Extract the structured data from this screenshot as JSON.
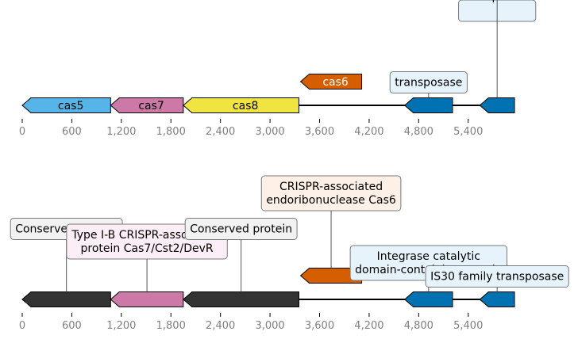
{
  "axis": {
    "ticks": [
      0,
      600,
      1200,
      1800,
      2400,
      3000,
      3600,
      4200,
      4800,
      5400
    ],
    "tick_labels": [
      "0",
      "600",
      "1,200",
      "1,800",
      "2,400",
      "3,000",
      "3,600",
      "4,200",
      "4,800",
      "5,400"
    ]
  },
  "tracks": [
    {
      "genes": [
        {
          "start": 0,
          "end": 1070,
          "strand": -1,
          "color": "#56b4e9",
          "label": "cas5",
          "label_color": "#000000"
        },
        {
          "start": 1070,
          "end": 1950,
          "strand": -1,
          "color": "#cc79a7",
          "label": "cas7",
          "label_color": "#000000"
        },
        {
          "start": 1950,
          "end": 3350,
          "strand": -1,
          "color": "#f0e442",
          "label": "cas8",
          "label_color": "#000000"
        },
        {
          "start": 3370,
          "end": 4110,
          "strand": -1,
          "color": "#d55e00",
          "label": "cas6",
          "label_color": "#ffffff",
          "raised": true
        },
        {
          "start": 4630,
          "end": 5210,
          "strand": -1,
          "color": "#0072b2",
          "callout": "transposase",
          "callout_bg": "#e6f3fb"
        },
        {
          "start": 5540,
          "end": 5960,
          "strand": -1,
          "color": "#0072b2",
          "callout": "transposase",
          "callout_bg": "#e6f3fb",
          "callout_level": 2
        }
      ]
    },
    {
      "genes": [
        {
          "start": 0,
          "end": 1070,
          "strand": -1,
          "color": "#333333",
          "callout": "Conserved protein ",
          "callout_bg": "#f2f2f2",
          "callout_level": 3
        },
        {
          "start": 1070,
          "end": 1950,
          "strand": -1,
          "color": "#cc79a7",
          "callout": "Type I-B CRISPR-associated\nprotein Cas7/Cst2/DevR",
          "callout_bg": "#fbeef6",
          "callout_level": 1
        },
        {
          "start": 1950,
          "end": 3350,
          "strand": -1,
          "color": "#333333",
          "callout": "Conserved protein ",
          "callout_bg": "#f2f2f2",
          "callout_level": 3
        },
        {
          "start": 3370,
          "end": 4110,
          "strand": -1,
          "color": "#d55e00",
          "raised": true,
          "callout": "CRISPR-associated\nendoribonuclease Cas6",
          "callout_bg": "#fdf0e6",
          "callout_level": 4
        },
        {
          "start": 4630,
          "end": 5210,
          "strand": -1,
          "color": "#0072b2",
          "callout": "Integrase catalytic\ndomain-containing protein",
          "callout_bg": "#e6f3fb",
          "callout_level": 2
        },
        {
          "start": 5540,
          "end": 5960,
          "strand": -1,
          "color": "#0072b2",
          "callout": "IS30 family transposase ",
          "callout_bg": "#e6f3fb",
          "callout_level": 0
        }
      ]
    }
  ]
}
